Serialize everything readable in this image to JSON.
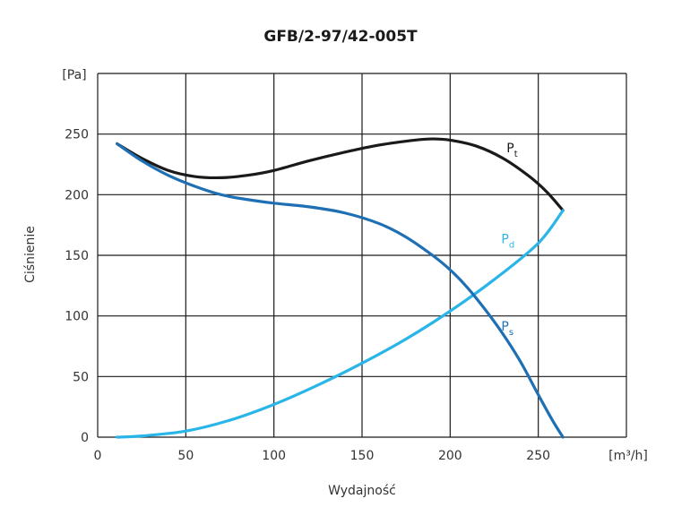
{
  "chart_data": {
    "type": "line",
    "title": "GFB/2-97/42-005T",
    "xlabel": "Wydajność",
    "ylabel": "Ciśnienie",
    "x_unit": "[m³/h]",
    "y_unit": "[Pa]",
    "xlim": [
      0,
      300
    ],
    "ylim": [
      0,
      300
    ],
    "x_ticks": [
      "0",
      "50",
      "100",
      "150",
      "200",
      "250"
    ],
    "y_ticks": [
      "0",
      "50",
      "100",
      "150",
      "200",
      "250"
    ],
    "grid": true,
    "series": [
      {
        "name": "Pt",
        "label_main": "P",
        "label_sub": "t",
        "color": "#1a1a1a",
        "x": [
          11,
          25,
          40,
          55,
          70,
          85,
          100,
          120,
          140,
          160,
          180,
          190,
          200,
          215,
          230,
          245,
          255,
          264
        ],
        "y": [
          242,
          230,
          220,
          215,
          214,
          216,
          220,
          228,
          235,
          241,
          245,
          246,
          245,
          240,
          230,
          215,
          202,
          187
        ]
      },
      {
        "name": "Pd",
        "label_main": "P",
        "label_sub": "d",
        "color": "#29b5e8",
        "x": [
          11,
          25,
          50,
          75,
          100,
          125,
          150,
          175,
          200,
          225,
          250,
          264
        ],
        "y": [
          0,
          1,
          5,
          14,
          27,
          43,
          61,
          81,
          104,
          130,
          160,
          187
        ]
      },
      {
        "name": "Ps",
        "label_main": "P",
        "label_sub": "s",
        "color": "#1f6fb5",
        "x": [
          11,
          25,
          40,
          55,
          70,
          85,
          100,
          120,
          140,
          160,
          175,
          190,
          200,
          210,
          220,
          230,
          240,
          250,
          258,
          264
        ],
        "y": [
          242,
          228,
          216,
          207,
          200,
          196,
          193,
          190,
          185,
          176,
          165,
          150,
          138,
          123,
          105,
          85,
          62,
          35,
          14,
          0
        ]
      }
    ]
  }
}
